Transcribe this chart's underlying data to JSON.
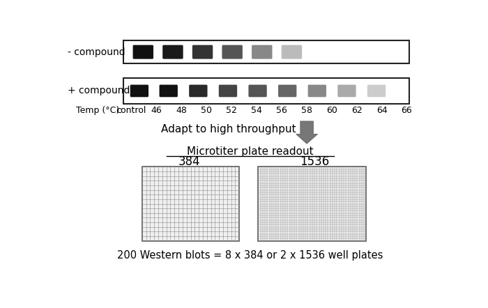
{
  "bg_color": "#ffffff",
  "minus_compound_label": "- compound",
  "plus_compound_label": "+ compound",
  "temp_label": "Temp (°C):",
  "temp_values": [
    "control",
    "46",
    "48",
    "50",
    "52",
    "54",
    "56",
    "58",
    "60",
    "62",
    "64",
    "66"
  ],
  "minus_band_colors": [
    "#111111",
    "#1a1a1a",
    "#333333",
    "#555555",
    "#888888",
    "#bbbbbb"
  ],
  "plus_band_colors": [
    "#111111",
    "#111111",
    "#2a2a2a",
    "#444444",
    "#555555",
    "#666666",
    "#888888",
    "#aaaaaa",
    "#cccccc"
  ],
  "adapt_text": "Adapt to high throughput",
  "readout_text": "Microtiter plate readout",
  "label_384": "384",
  "label_1536": "1536",
  "bottom_text": "200 Western blots = 8 x 384 or 2 x 1536 well plates",
  "plate384_rows": 16,
  "plate384_cols": 24,
  "plate1536_rows": 32,
  "plate1536_cols": 48,
  "arrow_color": "#777777"
}
